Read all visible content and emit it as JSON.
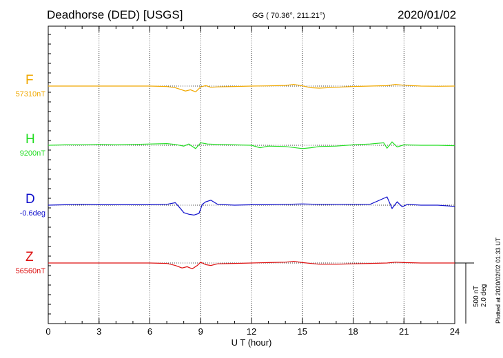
{
  "header": {
    "station": "Deadhorse (DED)  [USGS]",
    "coords": "GG ( 70.36°, 211.21°)",
    "date": "2020/01/02"
  },
  "scale": {
    "nt": "500 nT",
    "deg": "2.0 deg"
  },
  "plotted": "Plotted at 2020/02/02 01:33 UT",
  "chart_data": {
    "type": "line",
    "xlabel": "U T (hour)",
    "xlim": [
      0,
      24
    ],
    "xticks": [
      0,
      3,
      6,
      9,
      12,
      15,
      18,
      21,
      24
    ],
    "grid": true,
    "channels": [
      {
        "name": "F",
        "baseline": "57310nT",
        "color": "#f0a800",
        "x": [
          0,
          1,
          2,
          3,
          4,
          5,
          6,
          7,
          7.5,
          7.8,
          8.1,
          8.4,
          8.7,
          9,
          9.3,
          9.6,
          10,
          11,
          12,
          13,
          14,
          14.5,
          15,
          15.5,
          16,
          17,
          18,
          19,
          20,
          20.5,
          21,
          22,
          23,
          24
        ],
        "y": [
          0,
          0,
          0,
          0,
          0,
          0,
          0,
          -10,
          -40,
          -80,
          -120,
          -90,
          -140,
          -20,
          10,
          -30,
          -20,
          -10,
          0,
          5,
          15,
          40,
          5,
          -40,
          -50,
          -30,
          -10,
          0,
          10,
          40,
          20,
          0,
          -5,
          0
        ]
      },
      {
        "name": "H",
        "baseline": "9200nT",
        "color": "#22dd22",
        "x": [
          0,
          1,
          2,
          3,
          4,
          5,
          6,
          7,
          7.5,
          8,
          8.3,
          8.7,
          9,
          9.4,
          10,
          11,
          12,
          12.5,
          13,
          14,
          15,
          15.5,
          16,
          17,
          18,
          19,
          19.8,
          20,
          20.3,
          20.6,
          21,
          22,
          23,
          24
        ],
        "y": [
          0,
          10,
          10,
          20,
          10,
          20,
          30,
          40,
          20,
          -20,
          30,
          -80,
          60,
          30,
          20,
          10,
          0,
          -60,
          -20,
          -30,
          -80,
          -60,
          -30,
          -20,
          10,
          30,
          60,
          -70,
          80,
          -40,
          10,
          0,
          0,
          -10
        ]
      },
      {
        "name": "D",
        "baseline": "-0.6deg",
        "color": "#1010cc",
        "x": [
          0,
          1,
          2,
          3,
          4,
          5,
          6,
          7,
          7.5,
          7.8,
          8,
          8.3,
          8.6,
          8.9,
          9.1,
          9.3,
          9.6,
          10,
          11,
          12,
          13,
          14,
          15,
          16,
          17,
          18,
          19,
          20,
          20.3,
          20.6,
          20.9,
          21.2,
          22,
          23,
          24
        ],
        "y": [
          0,
          10,
          20,
          10,
          10,
          10,
          10,
          20,
          60,
          -80,
          -180,
          -220,
          -240,
          -200,
          20,
          80,
          120,
          20,
          0,
          10,
          10,
          20,
          30,
          20,
          20,
          20,
          20,
          200,
          -80,
          80,
          -40,
          20,
          0,
          0,
          -30
        ]
      },
      {
        "name": "Z",
        "baseline": "56560nT",
        "color": "#dd1111",
        "x": [
          0,
          1,
          2,
          3,
          4,
          5,
          6,
          7,
          7.5,
          7.9,
          8.2,
          8.5,
          8.8,
          9,
          9.3,
          9.6,
          10,
          11,
          12,
          13,
          14,
          14.5,
          15,
          16,
          17,
          18,
          19,
          20,
          20.5,
          21,
          22,
          23,
          24
        ],
        "y": [
          0,
          0,
          0,
          0,
          0,
          0,
          0,
          -10,
          -60,
          -120,
          -90,
          -140,
          -60,
          20,
          -40,
          -60,
          -20,
          -10,
          0,
          10,
          20,
          40,
          10,
          -30,
          -30,
          -20,
          -10,
          0,
          20,
          10,
          0,
          0,
          0
        ]
      }
    ]
  }
}
